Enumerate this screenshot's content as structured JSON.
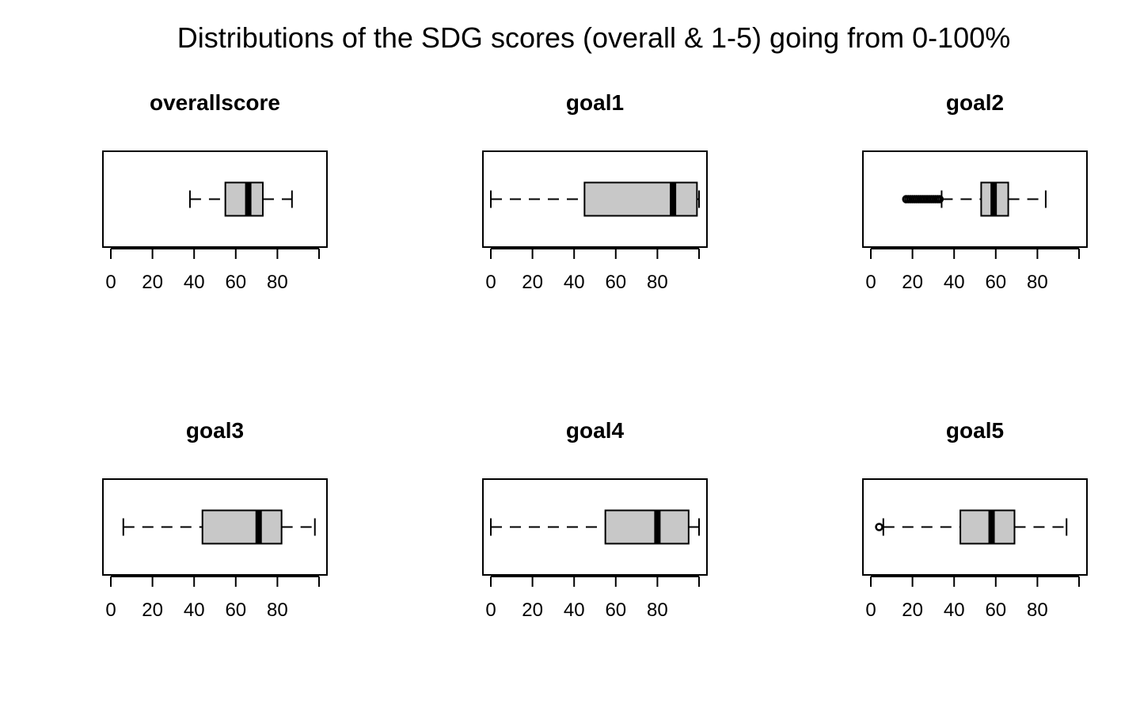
{
  "figure": {
    "title": "Distributions of the SDG scores (overall & 1-5) going from 0-100%"
  },
  "chart_data": [
    {
      "type": "boxplot",
      "orientation": "horizontal",
      "title": "overallscore",
      "xlim": [
        0,
        100
      ],
      "ticks": [
        0,
        20,
        40,
        60,
        80,
        100
      ],
      "tick_labels": [
        "0",
        "20",
        "40",
        "60",
        "80",
        ""
      ],
      "box": {
        "whisker_low": 38,
        "q1": 55,
        "median": 66,
        "q3": 73,
        "whisker_high": 87
      },
      "outliers": [],
      "box_fill": "#c8c8c8",
      "grid": false
    },
    {
      "type": "boxplot",
      "orientation": "horizontal",
      "title": "goal1",
      "xlim": [
        0,
        100
      ],
      "ticks": [
        0,
        20,
        40,
        60,
        80,
        100
      ],
      "tick_labels": [
        "0",
        "20",
        "40",
        "60",
        "80",
        ""
      ],
      "box": {
        "whisker_low": 0,
        "q1": 45,
        "median": 87.5,
        "q3": 99,
        "whisker_high": 100
      },
      "outliers": [],
      "box_fill": "#c8c8c8",
      "grid": false
    },
    {
      "type": "boxplot",
      "orientation": "horizontal",
      "title": "goal2",
      "xlim": [
        0,
        100
      ],
      "ticks": [
        0,
        20,
        40,
        60,
        80,
        100
      ],
      "tick_labels": [
        "0",
        "20",
        "40",
        "60",
        "80",
        ""
      ],
      "box": {
        "whisker_low": 34,
        "q1": 53,
        "median": 59,
        "q3": 66,
        "whisker_high": 84
      },
      "outliers": [
        17,
        18,
        19,
        20,
        21,
        22,
        23,
        24,
        25,
        26,
        27,
        28,
        29,
        30,
        31,
        32,
        33
      ],
      "box_fill": "#c8c8c8",
      "grid": false
    },
    {
      "type": "boxplot",
      "orientation": "horizontal",
      "title": "goal3",
      "xlim": [
        0,
        100
      ],
      "ticks": [
        0,
        20,
        40,
        60,
        80,
        100
      ],
      "tick_labels": [
        "0",
        "20",
        "40",
        "60",
        "80",
        ""
      ],
      "box": {
        "whisker_low": 6,
        "q1": 44,
        "median": 71,
        "q3": 82,
        "whisker_high": 98
      },
      "outliers": [],
      "box_fill": "#c8c8c8",
      "grid": false
    },
    {
      "type": "boxplot",
      "orientation": "horizontal",
      "title": "goal4",
      "xlim": [
        0,
        100
      ],
      "ticks": [
        0,
        20,
        40,
        60,
        80,
        100
      ],
      "tick_labels": [
        "0",
        "20",
        "40",
        "60",
        "80",
        ""
      ],
      "box": {
        "whisker_low": 0,
        "q1": 55,
        "median": 80,
        "q3": 95,
        "whisker_high": 100
      },
      "outliers": [],
      "box_fill": "#c8c8c8",
      "grid": false
    },
    {
      "type": "boxplot",
      "orientation": "horizontal",
      "title": "goal5",
      "xlim": [
        0,
        100
      ],
      "ticks": [
        0,
        20,
        40,
        60,
        80,
        100
      ],
      "tick_labels": [
        "0",
        "20",
        "40",
        "60",
        "80",
        ""
      ],
      "box": {
        "whisker_low": 6,
        "q1": 43,
        "median": 58,
        "q3": 69,
        "whisker_high": 94
      },
      "outliers": [
        4
      ],
      "box_fill": "#c8c8c8",
      "grid": false
    }
  ]
}
